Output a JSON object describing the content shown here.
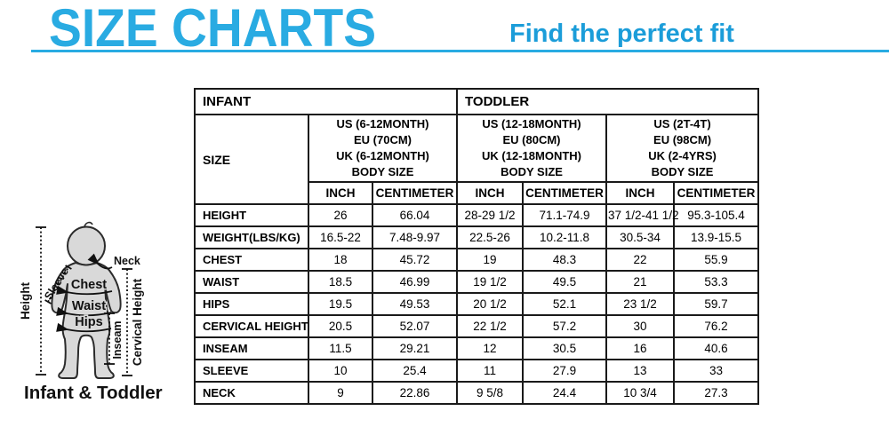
{
  "theme": {
    "accent_color": "#29ABE2",
    "subtitle_color": "#1B9DD9",
    "table_border_color": "#1a1a1a",
    "figure_fill_color": "#d9d9d9"
  },
  "header": {
    "title": "SIZE CHARTS",
    "subtitle": "Find the perfect fit"
  },
  "diagram": {
    "caption": "Infant & Toddler",
    "labels": {
      "height": "Height",
      "neck": "Neck",
      "sleeve": "Sleeve",
      "chest": "Chest",
      "waist": "Waist",
      "hips": "Hips",
      "inseam": "Inseam",
      "cervical_height": "Cervical Height"
    }
  },
  "table": {
    "group_headers": [
      "INFANT",
      "TODDLER"
    ],
    "size_label": "SIZE",
    "size_groups": [
      {
        "lines": [
          "US (6-12MONTH)",
          "EU (70CM)",
          "UK (6-12MONTH)",
          "BODY SIZE"
        ]
      },
      {
        "lines": [
          "US (12-18MONTH)",
          "EU (80CM)",
          "UK (12-18MONTH)",
          "BODY SIZE"
        ]
      },
      {
        "lines": [
          "US (2T-4T)",
          "EU (98CM)",
          "UK (2-4YRS)",
          "BODY SIZE"
        ]
      }
    ],
    "unit_headers": [
      "INCH",
      "CENTIMETER",
      "INCH",
      "CENTIMETER",
      "INCH",
      "CENTIMETER"
    ],
    "rows": [
      {
        "label": "HEIGHT",
        "values": [
          "26",
          "66.04",
          "28-29 1/2",
          "71.1-74.9",
          "37 1/2-41 1/2",
          "95.3-105.4"
        ]
      },
      {
        "label": "WEIGHT(LBS/KG)",
        "values": [
          "16.5-22",
          "7.48-9.97",
          "22.5-26",
          "10.2-11.8",
          "30.5-34",
          "13.9-15.5"
        ]
      },
      {
        "label": "CHEST",
        "values": [
          "18",
          "45.72",
          "19",
          "48.3",
          "22",
          "55.9"
        ]
      },
      {
        "label": "WAIST",
        "values": [
          "18.5",
          "46.99",
          "19 1/2",
          "49.5",
          "21",
          "53.3"
        ]
      },
      {
        "label": "HIPS",
        "values": [
          "19.5",
          "49.53",
          "20 1/2",
          "52.1",
          "23 1/2",
          "59.7"
        ]
      },
      {
        "label": "CERVICAL HEIGHT",
        "values": [
          "20.5",
          "52.07",
          "22 1/2",
          "57.2",
          "30",
          "76.2"
        ]
      },
      {
        "label": "INSEAM",
        "values": [
          "11.5",
          "29.21",
          "12",
          "30.5",
          "16",
          "40.6"
        ]
      },
      {
        "label": "SLEEVE",
        "values": [
          "10",
          "25.4",
          "11",
          "27.9",
          "13",
          "33"
        ]
      },
      {
        "label": "NECK",
        "values": [
          "9",
          "22.86",
          "9 5/8",
          "24.4",
          "10 3/4",
          "27.3"
        ]
      }
    ]
  }
}
